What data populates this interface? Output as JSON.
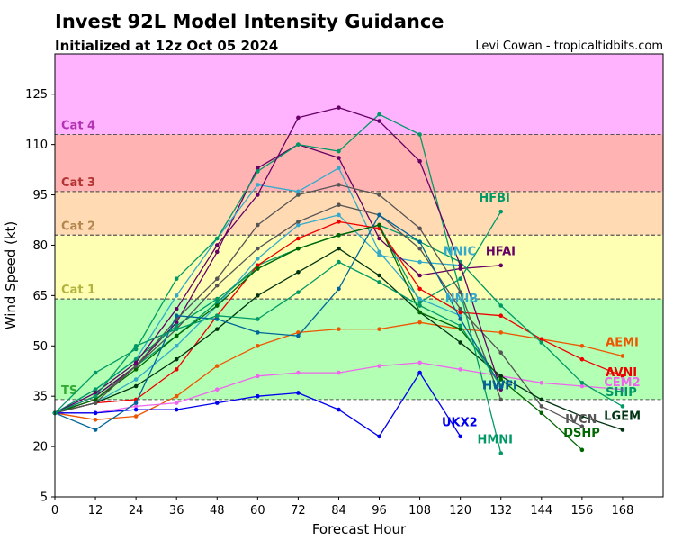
{
  "header": {
    "title": "Invest 92L Model Intensity Guidance",
    "subtitle": "Initialized at 12z Oct 05 2024",
    "credit": "Levi Cowan - tropicaltidbits.com"
  },
  "chart_data": {
    "type": "line",
    "xlabel": "Forecast Hour",
    "ylabel": "Wind Speed (kt)",
    "xlim": [
      0,
      180
    ],
    "ylim": [
      5,
      137
    ],
    "xticks": [
      0,
      12,
      24,
      36,
      48,
      60,
      72,
      84,
      96,
      108,
      120,
      132,
      144,
      156,
      168
    ],
    "yticks": [
      5,
      20,
      35,
      50,
      65,
      80,
      95,
      110,
      125
    ],
    "grid": false,
    "bands": [
      {
        "name": "TS",
        "from": 34,
        "to": 64,
        "color": "#b3ffb3",
        "label_color": "#33aa33"
      },
      {
        "name": "Cat 1",
        "from": 64,
        "to": 83,
        "color": "#ffffb3",
        "label_color": "#b3b33f"
      },
      {
        "name": "Cat 2",
        "from": 83,
        "to": 96,
        "color": "#ffdab3",
        "label_color": "#b3864d"
      },
      {
        "name": "Cat 3",
        "from": 96,
        "to": 113,
        "color": "#ffb3b3",
        "label_color": "#b33333"
      },
      {
        "name": "Cat 4",
        "from": 113,
        "to": 137,
        "color": "#ffb3ff",
        "label_color": "#b333b3"
      }
    ],
    "series": [
      {
        "name": "HFBI",
        "color": "#009966",
        "x": [
          0,
          12,
          24,
          36,
          48,
          60,
          72,
          84,
          96,
          108,
          120,
          132
        ],
        "y": [
          30,
          35,
          44,
          53,
          63,
          74,
          79,
          83,
          86,
          63,
          70,
          90
        ]
      },
      {
        "name": "NNIC",
        "color": "#33aacc",
        "x": [
          0,
          12,
          24,
          36,
          48,
          60,
          72,
          84,
          96,
          108,
          120
        ],
        "y": [
          30,
          33,
          40,
          50,
          62,
          76,
          86,
          89,
          77,
          75,
          74
        ]
      },
      {
        "name": "HFAI",
        "color": "#660066",
        "x": [
          0,
          12,
          24,
          36,
          48,
          60,
          72,
          84,
          96,
          108,
          120,
          132
        ],
        "y": [
          30,
          35,
          44,
          57,
          78,
          103,
          110,
          106,
          82,
          71,
          73,
          74
        ]
      },
      {
        "name": "NNIB",
        "color": "#33aacc",
        "x": [
          0,
          12,
          24,
          36,
          48,
          60,
          72,
          84,
          96,
          108,
          120
        ],
        "y": [
          30,
          37,
          46,
          65,
          82,
          98,
          96,
          103,
          78,
          64,
          59
        ]
      },
      {
        "name": "AEMI",
        "color": "#ee5500",
        "x": [
          0,
          12,
          24,
          36,
          48,
          60,
          72,
          84,
          96,
          108,
          120,
          132,
          144,
          156,
          168
        ],
        "y": [
          30,
          28,
          29,
          35,
          44,
          50,
          54,
          55,
          55,
          57,
          55,
          54,
          52,
          50,
          47
        ]
      },
      {
        "name": "AVNI",
        "color": "#ee0000",
        "x": [
          0,
          12,
          24,
          36,
          48,
          60,
          72,
          84,
          96,
          108,
          120,
          132,
          144,
          156,
          168
        ],
        "y": [
          30,
          33,
          34,
          43,
          59,
          74,
          82,
          87,
          85,
          67,
          60,
          59,
          52,
          46,
          41
        ]
      },
      {
        "name": "CEM2",
        "color": "#ee66ee",
        "x": [
          0,
          12,
          24,
          36,
          48,
          60,
          72,
          84,
          96,
          108,
          120,
          132,
          144,
          156,
          168
        ],
        "y": [
          30,
          30,
          32,
          33,
          37,
          41,
          42,
          42,
          44,
          45,
          43,
          41,
          39,
          38,
          37
        ]
      },
      {
        "name": "SHIP",
        "color": "#009966",
        "x": [
          0,
          12,
          24,
          36,
          48,
          60,
          72,
          84,
          96,
          108,
          120,
          132,
          144,
          156,
          168
        ],
        "y": [
          30,
          37,
          46,
          56,
          64,
          73,
          79,
          83,
          86,
          81,
          75,
          62,
          51,
          39,
          32
        ]
      },
      {
        "name": "IVCN",
        "color": "#555555",
        "x": [
          0,
          12,
          24,
          36,
          48,
          60,
          72,
          84,
          96,
          108,
          120,
          132,
          144,
          156
        ],
        "y": [
          30,
          34,
          44,
          55,
          68,
          79,
          87,
          92,
          89,
          79,
          61,
          48,
          32,
          26
        ]
      },
      {
        "name": "LGEM",
        "color": "#003311",
        "x": [
          0,
          12,
          24,
          36,
          48,
          60,
          72,
          84,
          96,
          108,
          120,
          132,
          144,
          156,
          168
        ],
        "y": [
          30,
          33,
          38,
          46,
          55,
          65,
          72,
          79,
          71,
          60,
          51,
          41,
          34,
          29,
          25
        ]
      },
      {
        "name": "DSHP",
        "color": "#006600",
        "x": [
          0,
          12,
          24,
          36,
          48,
          60,
          72,
          84,
          96,
          108,
          120,
          132,
          144,
          156
        ],
        "y": [
          30,
          34,
          43,
          53,
          62,
          73,
          79,
          83,
          86,
          60,
          55,
          40,
          30,
          19
        ]
      },
      {
        "name": "UKX2",
        "color": "#0000ee",
        "x": [
          0,
          12,
          24,
          36,
          48,
          60,
          72,
          84,
          96,
          108,
          120
        ],
        "y": [
          30,
          30,
          31,
          31,
          33,
          35,
          36,
          31,
          23,
          42,
          23
        ]
      },
      {
        "name": "HMNI",
        "color": "#009966",
        "x": [
          0,
          12,
          24,
          36,
          48,
          60,
          72,
          84,
          96,
          108,
          120,
          132
        ],
        "y": [
          30,
          42,
          49,
          70,
          82,
          102,
          110,
          108,
          119,
          113,
          66,
          18
        ]
      },
      {
        "name": "HWFI",
        "color": "#555555",
        "x": [
          0,
          12,
          24,
          36,
          48,
          60,
          72,
          84,
          96,
          108,
          120,
          132
        ],
        "y": [
          30,
          33,
          44,
          58,
          70,
          86,
          95,
          98,
          95,
          85,
          66,
          34
        ]
      },
      {
        "name": "HWFI",
        "color": "#660066",
        "x": [
          0,
          12,
          24,
          36,
          48,
          60,
          72,
          84,
          96,
          108,
          120,
          132
        ],
        "y": [
          30,
          36,
          45,
          61,
          80,
          95,
          118,
          121,
          117,
          105,
          74,
          37
        ]
      },
      {
        "name": "HWFI",
        "color": "#006699",
        "x": [
          0,
          12,
          24,
          36,
          48,
          60,
          72,
          84,
          96,
          108,
          120,
          132
        ],
        "y": [
          30,
          25,
          33,
          59,
          58,
          54,
          53,
          67,
          89,
          81,
          58,
          38
        ]
      },
      {
        "name": "HWFI",
        "color": "#009966",
        "x": [
          0,
          12,
          24,
          36,
          48,
          60,
          72,
          84,
          96,
          108,
          120,
          132
        ],
        "y": [
          30,
          35,
          50,
          55,
          59,
          58,
          66,
          75,
          69,
          62,
          56,
          38
        ]
      }
    ],
    "end_labels": [
      {
        "text": "HFBI",
        "color": "#009966",
        "x": 125.5,
        "y": 93
      },
      {
        "text": "NNIC",
        "color": "#33aacc",
        "x": 115.0,
        "y": 77
      },
      {
        "text": "HFAI",
        "color": "#660066",
        "x": 127.5,
        "y": 77
      },
      {
        "text": "NNIB",
        "color": "#33aacc",
        "x": 115.5,
        "y": 63
      },
      {
        "text": "AEMI",
        "color": "#ee5500",
        "x": 163.0,
        "y": 50
      },
      {
        "text": "AVNI",
        "color": "#ee0000",
        "x": 163.0,
        "y": 41
      },
      {
        "text": "CEM2",
        "color": "#ee66ee",
        "x": 162.5,
        "y": 38
      },
      {
        "text": "SHIP",
        "color": "#009966",
        "x": 163.0,
        "y": 35
      },
      {
        "text": "IVCN",
        "color": "#555555",
        "x": 151.0,
        "y": 27
      },
      {
        "text": "LGEM",
        "color": "#003311",
        "x": 162.5,
        "y": 28
      },
      {
        "text": "DSHP",
        "color": "#006600",
        "x": 150.5,
        "y": 23
      },
      {
        "text": "UKX2",
        "color": "#0000ee",
        "x": 114.5,
        "y": 26
      },
      {
        "text": "HMNI",
        "color": "#009966",
        "x": 125.0,
        "y": 21
      },
      {
        "text": "HWFI",
        "color": "#555555",
        "x": 126.5,
        "y": 37
      },
      {
        "text": "HWFI",
        "color": "#660066",
        "x": 126.5,
        "y": 37
      },
      {
        "text": "HWFI",
        "color": "#006699",
        "x": 126.5,
        "y": 37
      }
    ]
  }
}
